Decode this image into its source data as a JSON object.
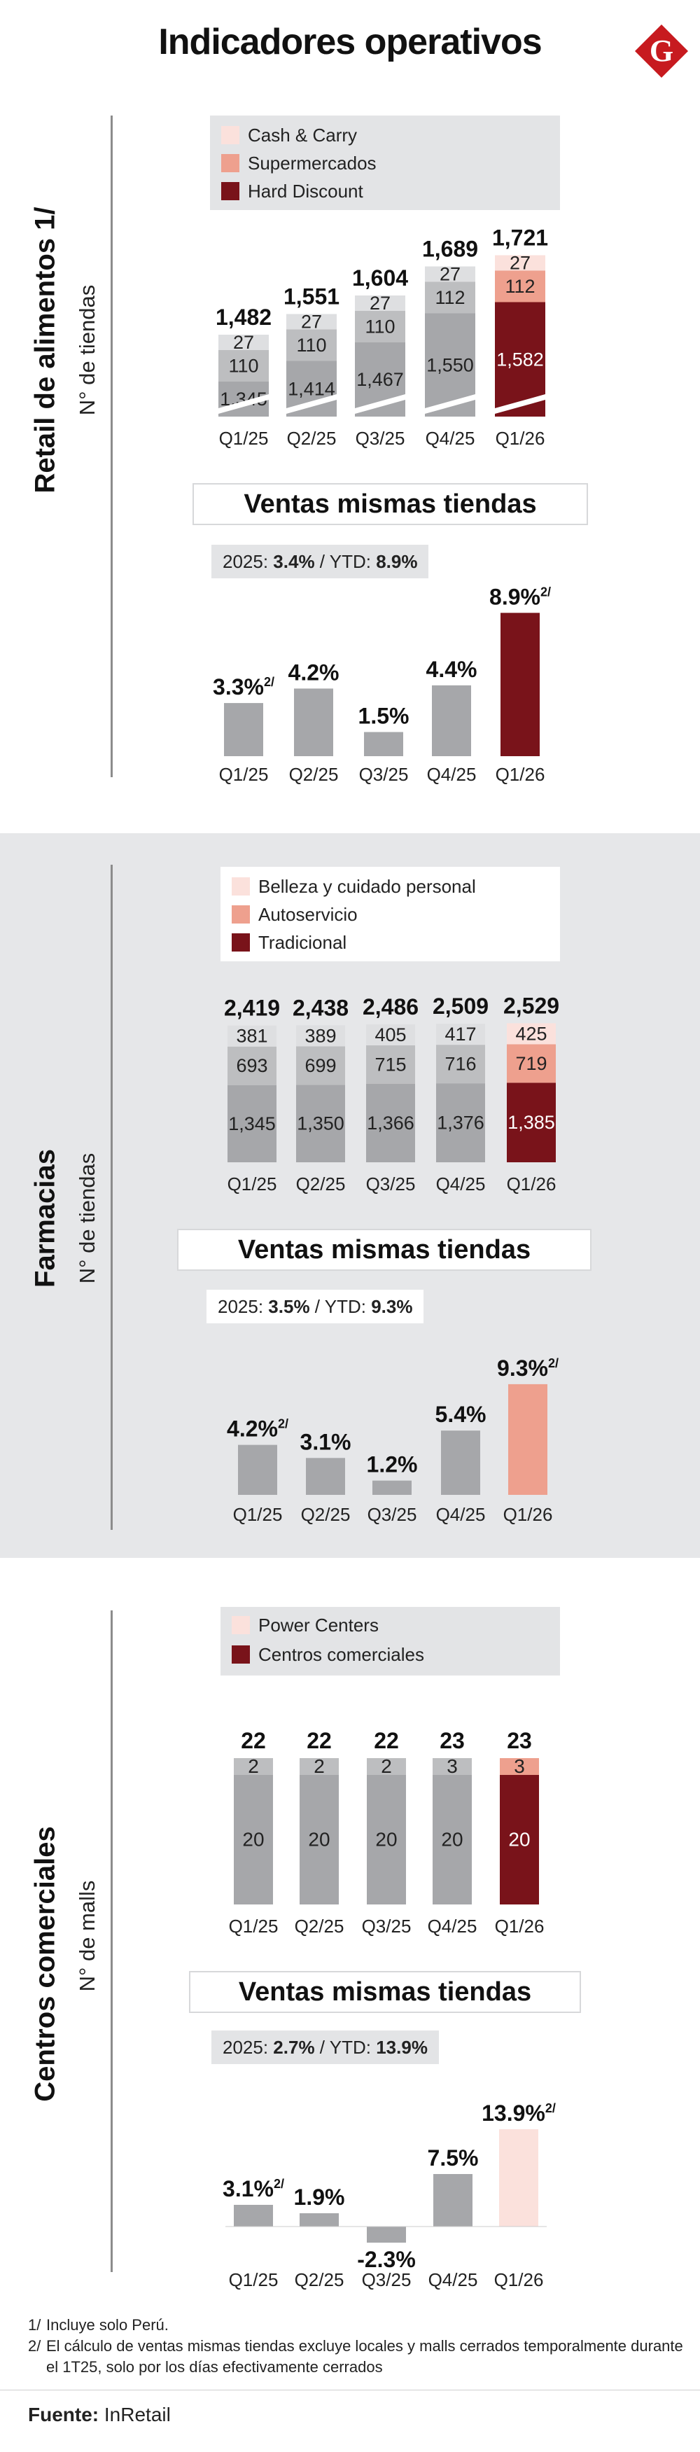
{
  "title": "Indicadores operativos",
  "logo_letter": "G",
  "colors": {
    "dark_red": "#79131a",
    "salmon": "#eea08e",
    "pale_pink": "#fbe1dc",
    "gray_dark": "#a6a7aa",
    "gray_mid": "#bdbec0",
    "gray_light": "#dedfe1",
    "logo_red": "#c71a1f"
  },
  "sections": [
    {
      "title": "Retail de alimentos 1/",
      "subtitle": "N° de tiendas",
      "legend": [
        {
          "label": "Cash & Carry",
          "color": "#fbe1dc"
        },
        {
          "label": "Supermercados",
          "color": "#eea08e"
        },
        {
          "label": "Hard Discount",
          "color": "#79131a"
        }
      ],
      "sales_header": "Ventas mismas tiendas",
      "ytd": {
        "prefix": "2025: ",
        "value_2025": "3.4%",
        "sep": " / YTD: ",
        "value_ytd": "8.9%"
      }
    },
    {
      "title": "Farmacias",
      "subtitle": "N° de tiendas",
      "legend": [
        {
          "label": "Belleza y cuidado personal",
          "color": "#fbe1dc"
        },
        {
          "label": "Autoservicio",
          "color": "#eea08e"
        },
        {
          "label": "Tradicional",
          "color": "#79131a"
        }
      ],
      "sales_header": "Ventas mismas tiendas",
      "ytd": {
        "prefix": "2025: ",
        "value_2025": "3.5%",
        "sep": " / YTD: ",
        "value_ytd": "9.3%"
      }
    },
    {
      "title": "Centros comerciales",
      "subtitle": "N° de malls",
      "legend": [
        {
          "label": "Power Centers",
          "color": "#fbe1dc"
        },
        {
          "label": "Centros comerciales",
          "color": "#79131a"
        }
      ],
      "sales_header": "Ventas mismas tiendas",
      "ytd": {
        "prefix": "2025: ",
        "value_2025": "2.7%",
        "sep": " / YTD: ",
        "value_ytd": "13.9%"
      }
    }
  ],
  "chart_data": [
    {
      "id": "retail-stores",
      "type": "bar",
      "stacked": true,
      "axis_break": true,
      "categories": [
        "Q1/25",
        "Q2/25",
        "Q3/25",
        "Q4/25",
        "Q1/26"
      ],
      "totals": [
        "1,482",
        "1,551",
        "1,604",
        "1,689",
        "1,721"
      ],
      "series": [
        {
          "name": "Hard Discount",
          "values": [
            1345,
            1414,
            1467,
            1550,
            1582
          ],
          "labels": [
            "1,345",
            "1,414",
            "1,467",
            "1,550",
            "1,582"
          ]
        },
        {
          "name": "Supermercados",
          "values": [
            110,
            110,
            110,
            112,
            112
          ],
          "labels": [
            "110",
            "110",
            "110",
            "112",
            "112"
          ]
        },
        {
          "name": "Cash & Carry",
          "values": [
            27,
            27,
            27,
            27,
            27
          ],
          "labels": [
            "27",
            "27",
            "27",
            "27",
            "27"
          ]
        }
      ]
    },
    {
      "id": "retail-sss",
      "type": "bar",
      "categories": [
        "Q1/25",
        "Q2/25",
        "Q3/25",
        "Q4/25",
        "Q1/26"
      ],
      "values": [
        3.3,
        4.2,
        1.5,
        4.4,
        8.9
      ],
      "labels": [
        "3.3%",
        "4.2%",
        "1.5%",
        "4.4%",
        "8.9%"
      ],
      "notes": [
        "2/",
        "",
        "",
        "",
        "2/"
      ],
      "highlight": "#79131a"
    },
    {
      "id": "pharmacy-stores",
      "type": "bar",
      "stacked": true,
      "categories": [
        "Q1/25",
        "Q2/25",
        "Q3/25",
        "Q4/25",
        "Q1/26"
      ],
      "totals": [
        "2,419",
        "2,438",
        "2,486",
        "2,509",
        "2,529"
      ],
      "series": [
        {
          "name": "Tradicional",
          "values": [
            1345,
            1350,
            1366,
            1376,
            1385
          ],
          "labels": [
            "1,345",
            "1,350",
            "1,366",
            "1,376",
            "1,385"
          ]
        },
        {
          "name": "Autoservicio",
          "values": [
            693,
            699,
            715,
            716,
            719
          ],
          "labels": [
            "693",
            "699",
            "715",
            "716",
            "719"
          ]
        },
        {
          "name": "Belleza y cuidado personal",
          "values": [
            381,
            389,
            405,
            417,
            425
          ],
          "labels": [
            "381",
            "389",
            "405",
            "417",
            "425"
          ]
        }
      ]
    },
    {
      "id": "pharmacy-sss",
      "type": "bar",
      "categories": [
        "Q1/25",
        "Q2/25",
        "Q3/25",
        "Q4/25",
        "Q1/26"
      ],
      "values": [
        4.2,
        3.1,
        1.2,
        5.4,
        9.3
      ],
      "labels": [
        "4.2%",
        "3.1%",
        "1.2%",
        "5.4%",
        "9.3%"
      ],
      "notes": [
        "2/",
        "",
        "",
        "",
        "2/"
      ],
      "highlight": "#eea08e"
    },
    {
      "id": "malls-count",
      "type": "bar",
      "stacked": true,
      "categories": [
        "Q1/25",
        "Q2/25",
        "Q3/25",
        "Q4/25",
        "Q1/26"
      ],
      "totals": [
        "22",
        "22",
        "22",
        "23",
        "23"
      ],
      "series": [
        {
          "name": "Centros comerciales",
          "values": [
            20,
            20,
            20,
            20,
            20
          ],
          "labels": [
            "20",
            "20",
            "20",
            "20",
            "20"
          ]
        },
        {
          "name": "Power Centers",
          "values": [
            2,
            2,
            2,
            3,
            3
          ],
          "labels": [
            "2",
            "2",
            "2",
            "3",
            "3"
          ]
        }
      ]
    },
    {
      "id": "malls-sss",
      "type": "bar",
      "categories": [
        "Q1/25",
        "Q2/25",
        "Q3/25",
        "Q4/25",
        "Q1/26"
      ],
      "values": [
        3.1,
        1.9,
        -2.3,
        7.5,
        13.9
      ],
      "labels": [
        "3.1%",
        "1.9%",
        "-2.3%",
        "7.5%",
        "13.9%"
      ],
      "notes": [
        "2/",
        "",
        "",
        "",
        "2/"
      ],
      "highlight": "#fbe1dc"
    }
  ],
  "footnotes": [
    {
      "num": "1/",
      "text": "Incluye solo Perú."
    },
    {
      "num": "2/",
      "text": "El cálculo de ventas mismas tiendas excluye locales y malls cerrados temporalmente durante el 1T25, solo por los días efectivamente cerrados"
    }
  ],
  "source": {
    "label": "Fuente:",
    "value": " InRetail"
  }
}
